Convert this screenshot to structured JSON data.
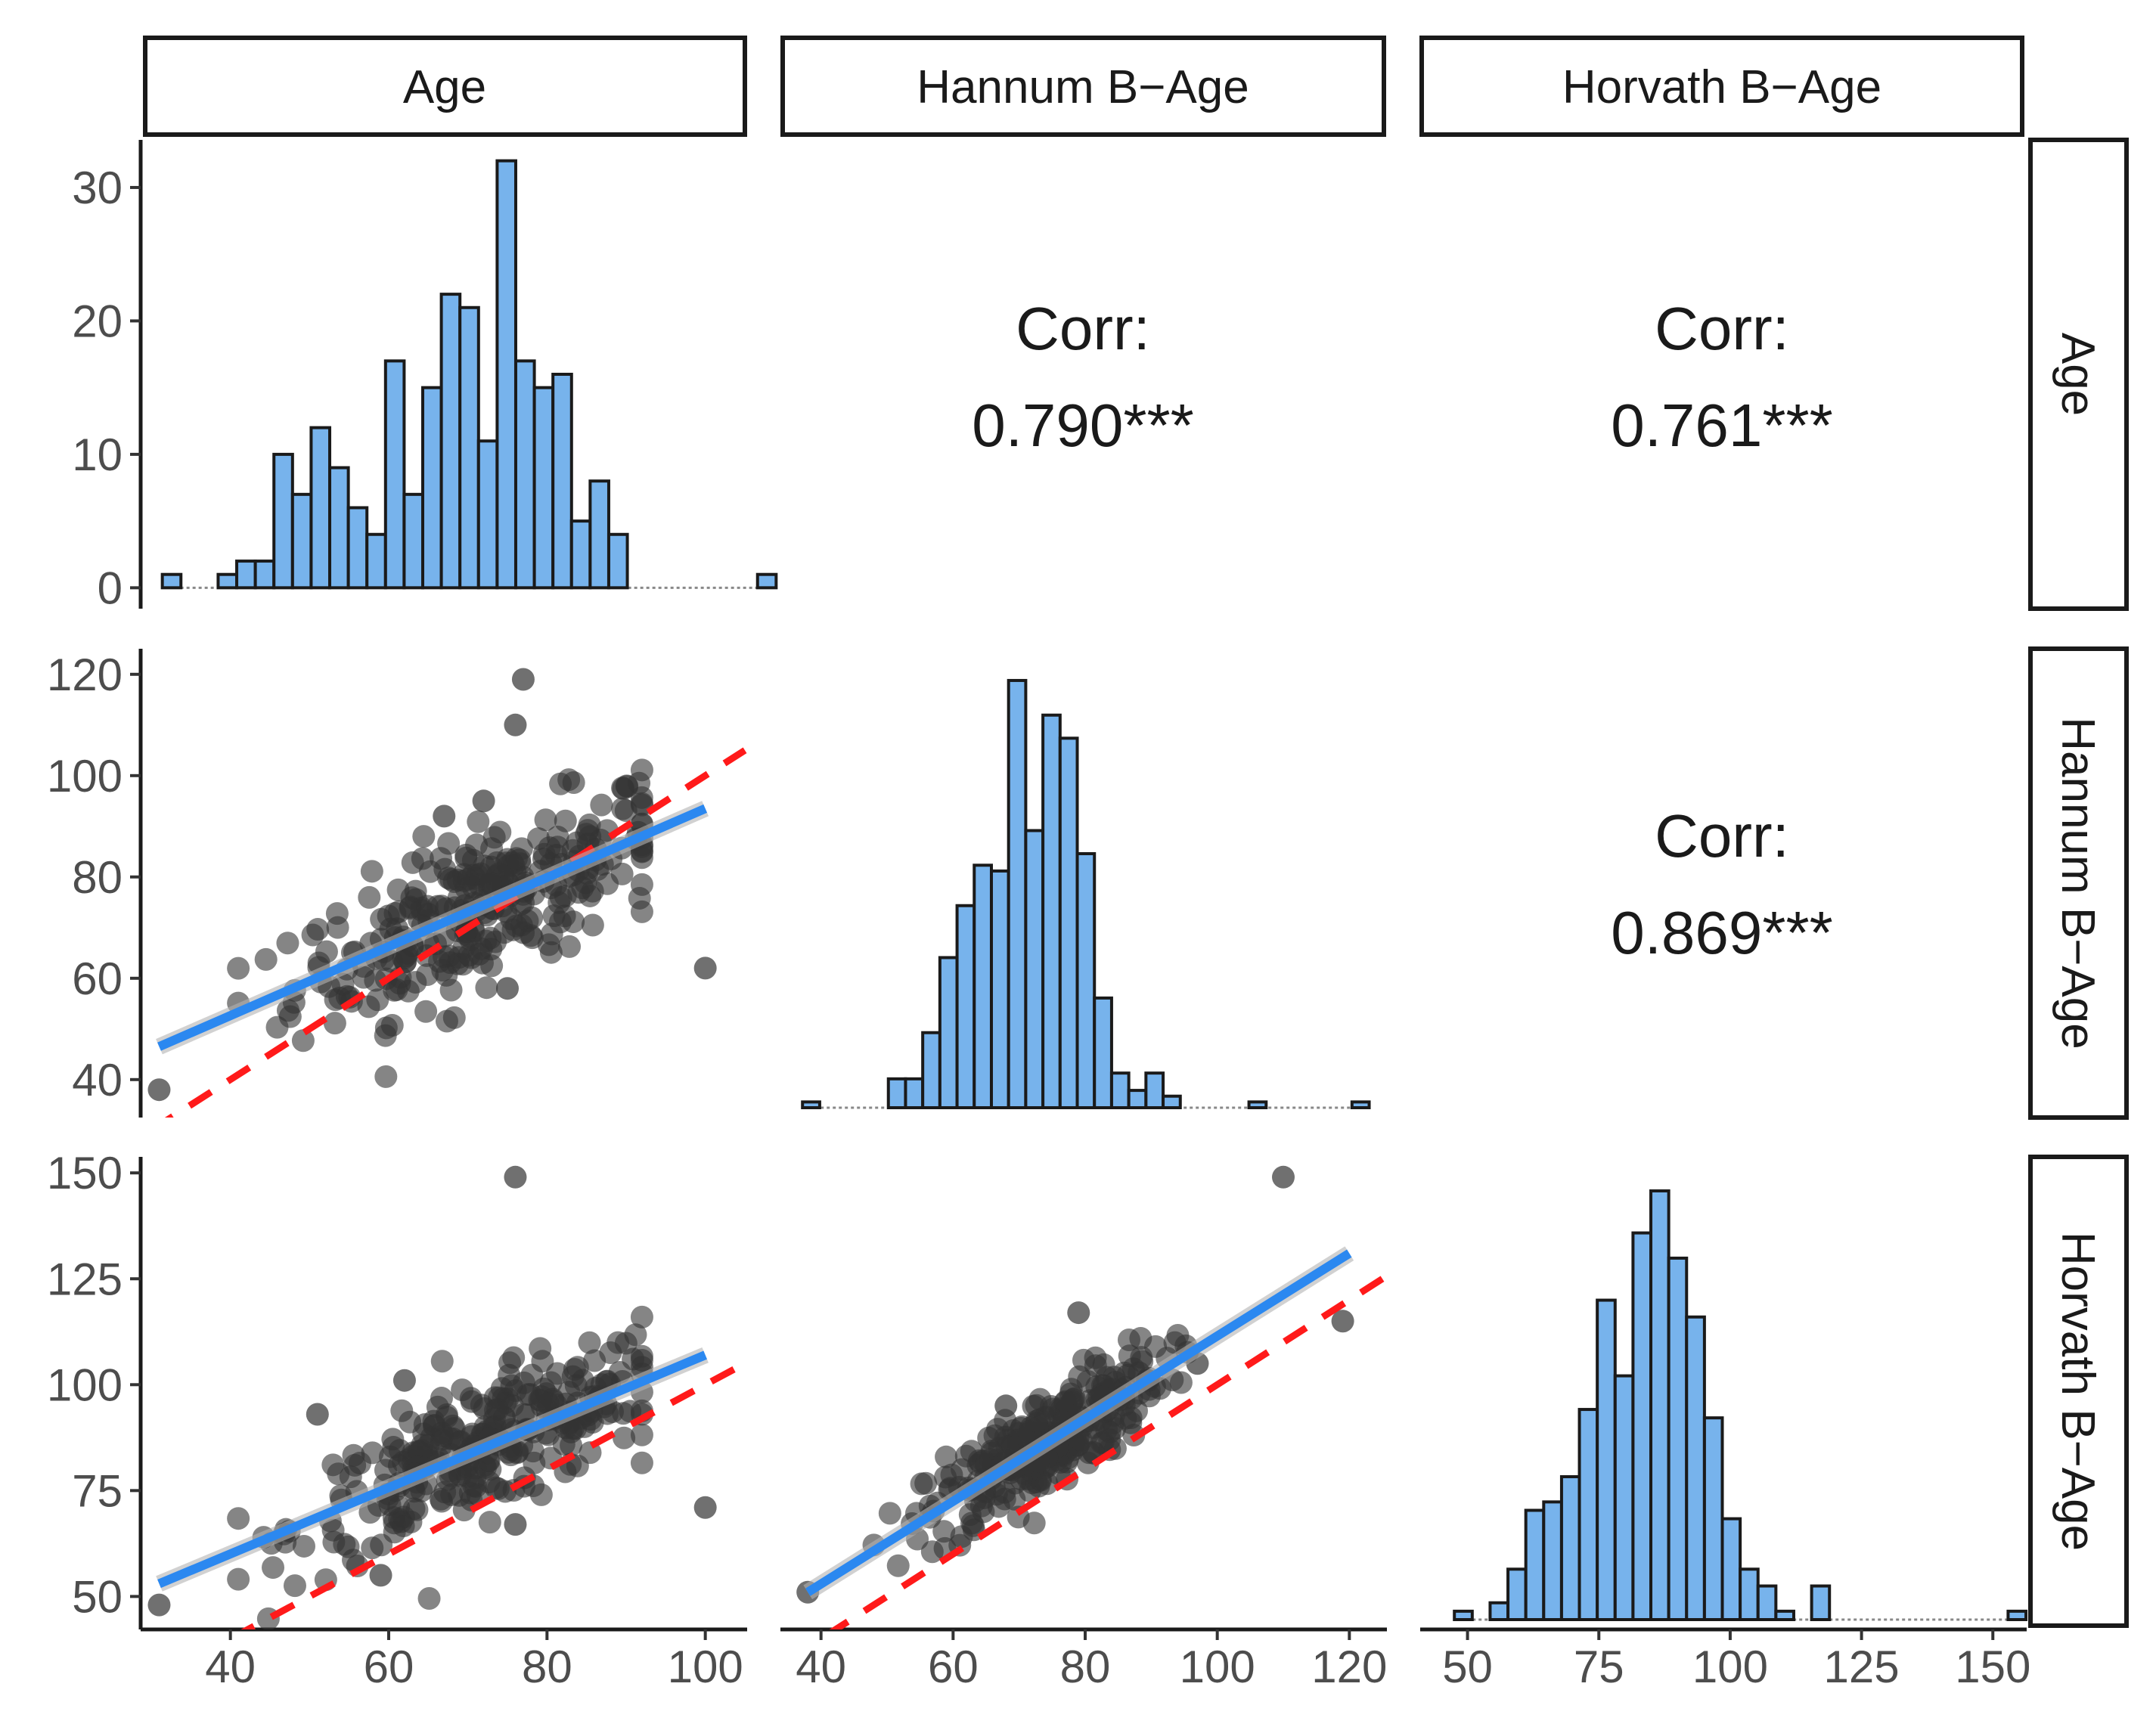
{
  "chart_data": {
    "type": "scatter",
    "title": "",
    "variables": [
      "Age",
      "Hannum B−Age",
      "Horvath B−Age"
    ],
    "column_strips": [
      "Age",
      "Hannum B−Age",
      "Horvath B−Age"
    ],
    "row_strips": [
      "Age",
      "Hannum B−Age",
      "Horvath B−Age"
    ],
    "corr_label": "Corr:",
    "correlations": [
      {
        "row": "Age",
        "col": "Hannum B−Age",
        "value": "0.790***"
      },
      {
        "row": "Age",
        "col": "Horvath B−Age",
        "value": "0.761***"
      },
      {
        "row": "Hannum B−Age",
        "col": "Horvath B−Age",
        "value": "0.869***"
      }
    ],
    "x_axes": {
      "Age": {
        "range": [
          30,
          105
        ],
        "ticks": [
          40,
          60,
          80,
          100
        ]
      },
      "Hannum B−Age": {
        "range": [
          35,
          125
        ],
        "ticks": [
          40,
          60,
          80,
          100,
          120
        ]
      },
      "Horvath B−Age": {
        "range": [
          42,
          155
        ],
        "ticks": [
          50,
          75,
          100,
          125,
          150
        ]
      }
    },
    "y_axes": {
      "Age_hist": {
        "range": [
          -1,
          33
        ],
        "ticks": [
          0,
          10,
          20,
          30
        ]
      },
      "Hannum B−Age": {
        "range": [
          34,
          124
        ],
        "ticks": [
          40,
          60,
          80,
          100,
          120
        ]
      },
      "Horvath B−Age": {
        "range": [
          44,
          152
        ],
        "ticks": [
          50,
          75,
          100,
          125,
          150
        ]
      }
    },
    "histograms": [
      {
        "variable": "Age",
        "bin_start": 31.4,
        "bin_width": 2.35,
        "counts": [
          1,
          0,
          0,
          1,
          2,
          2,
          10,
          7,
          12,
          9,
          6,
          4,
          17,
          7,
          15,
          22,
          21,
          11,
          32,
          17,
          15,
          16,
          5,
          8,
          4,
          0,
          0,
          0,
          0,
          0,
          0,
          0,
          1
        ],
        "y_unit": "count"
      },
      {
        "variable": "Hannum B−Age",
        "bin_start": 37.2,
        "bin_width": 2.6,
        "counts": [
          1,
          0,
          0,
          0,
          0,
          5,
          5,
          13,
          26,
          35,
          42,
          41,
          74,
          48,
          68,
          64,
          44,
          19,
          6,
          3,
          6,
          2,
          0,
          0,
          0,
          0,
          1,
          0,
          0,
          0,
          0,
          0,
          1
        ],
        "y_unit": "relative frequency (percent of max)"
      },
      {
        "variable": "Horvath B−Age",
        "bin_start": 47.5,
        "bin_width": 3.4,
        "counts": [
          1,
          0,
          2,
          6,
          13,
          14,
          17,
          25,
          38,
          29,
          46,
          51,
          43,
          36,
          24,
          12,
          6,
          4,
          1,
          0,
          4,
          0,
          0,
          0,
          0,
          0,
          0,
          0,
          0,
          0,
          0,
          1
        ],
        "y_unit": "relative frequency (percent of max)"
      }
    ],
    "scatter_panels": [
      {
        "x": "Age",
        "y": "Hannum B−Age",
        "fit_line": {
          "x": [
            31,
            100
          ],
          "y": [
            46.5,
            93.5
          ],
          "color": "#2b88f0"
        },
        "identity_line": {
          "color": "#ff1a1a",
          "style": "dashed"
        },
        "outliers": [
          [
            31,
            38
          ],
          [
            77,
            119
          ],
          [
            76,
            110
          ],
          [
            100,
            62
          ],
          [
            75,
            58
          ],
          [
            67,
            92
          ],
          [
            72,
            95
          ]
        ]
      },
      {
        "x": "Age",
        "y": "Horvath B−Age",
        "fit_line": {
          "x": [
            31,
            100
          ],
          "y": [
            53,
            107
          ],
          "color": "#2b88f0"
        },
        "identity_line": {
          "color": "#ff1a1a",
          "style": "dashed"
        },
        "outliers": [
          [
            31,
            48
          ],
          [
            76,
            149
          ],
          [
            100,
            71
          ],
          [
            51,
            93
          ],
          [
            62,
            101
          ],
          [
            76,
            67
          ],
          [
            59,
            55
          ]
        ]
      },
      {
        "x": "Hannum B−Age",
        "y": "Horvath B−Age",
        "fit_line": {
          "x": [
            38,
            120
          ],
          "y": [
            51,
            131
          ],
          "color": "#2b88f0"
        },
        "identity_line": {
          "color": "#ff1a1a",
          "style": "dashed"
        },
        "outliers": [
          [
            38,
            51
          ],
          [
            110,
            149
          ],
          [
            119,
            115
          ],
          [
            97,
            105
          ],
          [
            79,
            117
          ],
          [
            68,
            95
          ]
        ]
      }
    ],
    "colors": {
      "histogram_fill": "#77b3ec",
      "point": "#333333",
      "fit": "#2b88f0",
      "identity": "#ff1a1a"
    },
    "grid": false
  }
}
